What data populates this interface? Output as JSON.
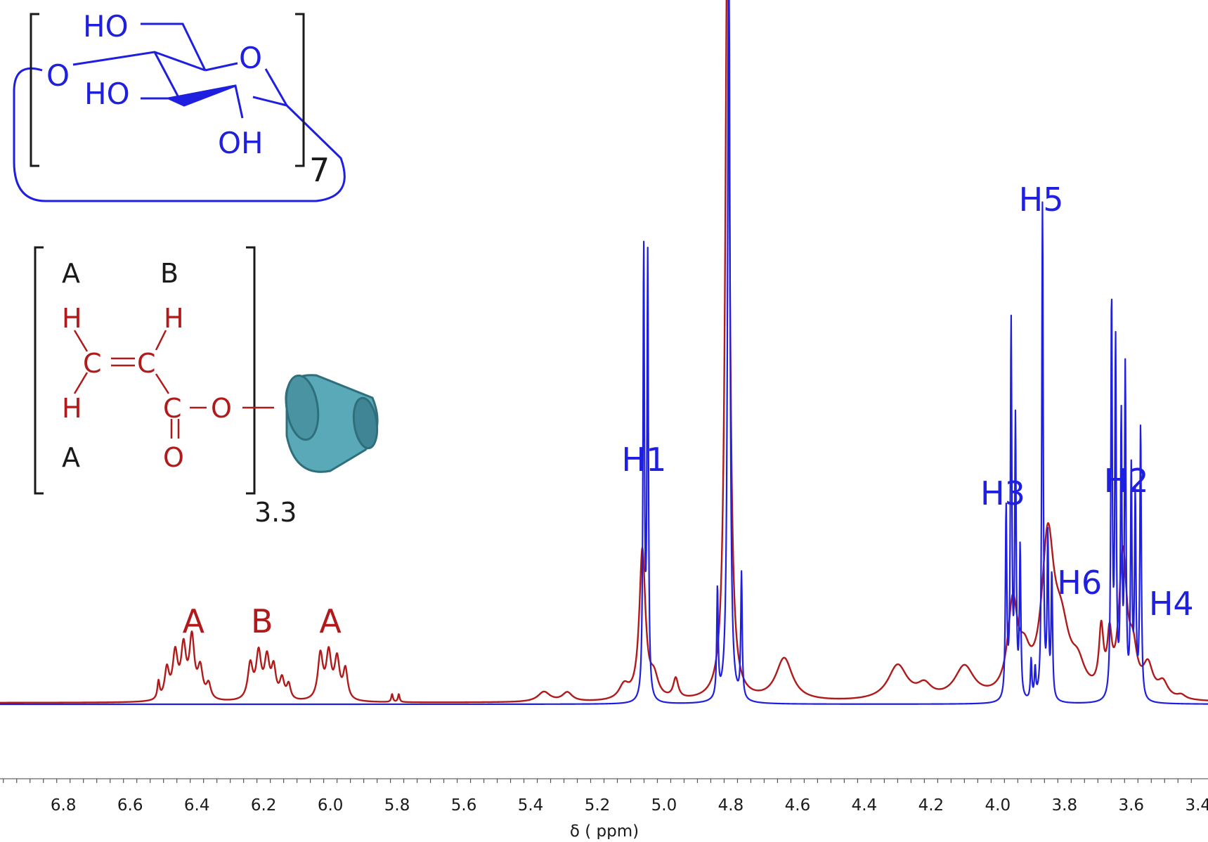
{
  "colors": {
    "blue": "#1f1fe0",
    "red": "#b01a1a",
    "black": "#1a1a1a",
    "cyd": "#5aa9b8"
  },
  "structure": {
    "cyclodextrin": {
      "ho_top": "HO",
      "o_ring": "O",
      "o_left": "O",
      "ho_mid": "HO",
      "oh": "OH",
      "repeat": "7"
    },
    "acrylate": {
      "a_top": "A",
      "b_top": "B",
      "h1": "H",
      "h2": "H",
      "h3": "H",
      "c1": "C",
      "c2": "C",
      "c3": "C",
      "o_ester": "O",
      "o_carbonyl": "O",
      "a_bottom": "A",
      "subscript": "3.3",
      "cd_icon": "cyclodextrin-icon"
    }
  },
  "chart_data": {
    "type": "line",
    "xlabel": "δ ( ppm)",
    "xlim": [
      6.99,
      3.37
    ],
    "ylim": [
      0,
      1
    ],
    "xaxis_reversed": true,
    "ticks": [
      "6.8",
      "6.6",
      "6.4",
      "6.2",
      "6.0",
      "5.8",
      "5.6",
      "5.4",
      "5.2",
      "5.0",
      "4.8",
      "4.6",
      "4.4",
      "4.2",
      "4.0",
      "3.8",
      "3.6",
      "3.4"
    ],
    "tick_values": [
      6.8,
      6.6,
      6.4,
      6.2,
      6.0,
      5.8,
      5.6,
      5.4,
      5.2,
      5.0,
      4.8,
      4.6,
      4.4,
      4.2,
      4.0,
      3.8,
      3.6,
      3.4
    ],
    "grid": false,
    "series": [
      {
        "color": "#b01a1a",
        "peaks": [
          {
            "x": 6.515,
            "h": 0.035,
            "w": 0.004
          },
          {
            "x": 6.49,
            "h": 0.06,
            "w": 0.008
          },
          {
            "x": 6.465,
            "h": 0.09,
            "w": 0.009
          },
          {
            "x": 6.44,
            "h": 0.1,
            "w": 0.009
          },
          {
            "x": 6.415,
            "h": 0.12,
            "w": 0.009
          },
          {
            "x": 6.39,
            "h": 0.06,
            "w": 0.009
          },
          {
            "x": 6.365,
            "h": 0.03,
            "w": 0.008
          },
          {
            "x": 6.24,
            "h": 0.07,
            "w": 0.009
          },
          {
            "x": 6.215,
            "h": 0.09,
            "w": 0.009
          },
          {
            "x": 6.19,
            "h": 0.08,
            "w": 0.009
          },
          {
            "x": 6.17,
            "h": 0.06,
            "w": 0.008
          },
          {
            "x": 6.145,
            "h": 0.04,
            "w": 0.008
          },
          {
            "x": 6.125,
            "h": 0.03,
            "w": 0.007
          },
          {
            "x": 6.03,
            "h": 0.09,
            "w": 0.009
          },
          {
            "x": 6.005,
            "h": 0.09,
            "w": 0.009
          },
          {
            "x": 5.98,
            "h": 0.08,
            "w": 0.009
          },
          {
            "x": 5.955,
            "h": 0.06,
            "w": 0.008
          },
          {
            "x": 5.815,
            "h": 0.016,
            "w": 0.003
          },
          {
            "x": 5.795,
            "h": 0.016,
            "w": 0.003
          },
          {
            "x": 5.36,
            "h": 0.02,
            "w": 0.022
          },
          {
            "x": 5.29,
            "h": 0.018,
            "w": 0.018
          },
          {
            "x": 5.12,
            "h": 0.028,
            "w": 0.018
          },
          {
            "x": 5.065,
            "h": 0.3,
            "w": 0.011
          },
          {
            "x": 5.03,
            "h": 0.04,
            "w": 0.015
          },
          {
            "x": 4.965,
            "h": 0.04,
            "w": 0.009
          },
          {
            "x": 4.81,
            "h": 1.6,
            "w": 0.008
          },
          {
            "x": 4.64,
            "h": 0.085,
            "w": 0.03
          },
          {
            "x": 4.3,
            "h": 0.07,
            "w": 0.035
          },
          {
            "x": 4.22,
            "h": 0.025,
            "w": 0.025
          },
          {
            "x": 4.1,
            "h": 0.065,
            "w": 0.035
          },
          {
            "x": 3.955,
            "h": 0.18,
            "w": 0.018
          },
          {
            "x": 3.92,
            "h": 0.06,
            "w": 0.02
          },
          {
            "x": 3.85,
            "h": 0.3,
            "w": 0.022
          },
          {
            "x": 3.81,
            "h": 0.12,
            "w": 0.03
          },
          {
            "x": 3.76,
            "h": 0.05,
            "w": 0.025
          },
          {
            "x": 3.69,
            "h": 0.12,
            "w": 0.008
          },
          {
            "x": 3.665,
            "h": 0.1,
            "w": 0.008
          },
          {
            "x": 3.625,
            "h": 0.28,
            "w": 0.014
          },
          {
            "x": 3.595,
            "h": 0.08,
            "w": 0.015
          },
          {
            "x": 3.55,
            "h": 0.06,
            "w": 0.018
          },
          {
            "x": 3.505,
            "h": 0.03,
            "w": 0.018
          },
          {
            "x": 3.45,
            "h": 0.008,
            "w": 0.015
          }
        ]
      },
      {
        "color": "#1f1fe0",
        "peaks": [
          {
            "x": 5.061,
            "h": 0.9,
            "w": 0.0025
          },
          {
            "x": 5.049,
            "h": 0.88,
            "w": 0.0025
          },
          {
            "x": 4.84,
            "h": 0.22,
            "w": 0.0025
          },
          {
            "x": 4.806,
            "h": 1.6,
            "w": 0.004
          },
          {
            "x": 4.768,
            "h": 0.25,
            "w": 0.0025
          },
          {
            "x": 3.975,
            "h": 0.38,
            "w": 0.0025
          },
          {
            "x": 3.96,
            "h": 0.75,
            "w": 0.0025
          },
          {
            "x": 3.947,
            "h": 0.55,
            "w": 0.0025
          },
          {
            "x": 3.933,
            "h": 0.3,
            "w": 0.0025
          },
          {
            "x": 3.9,
            "h": 0.08,
            "w": 0.0025
          },
          {
            "x": 3.888,
            "h": 0.06,
            "w": 0.0025
          },
          {
            "x": 3.866,
            "h": 1.0,
            "w": 0.0025
          },
          {
            "x": 3.85,
            "h": 0.32,
            "w": 0.0025
          },
          {
            "x": 3.838,
            "h": 0.25,
            "w": 0.0025
          },
          {
            "x": 3.659,
            "h": 0.8,
            "w": 0.0025
          },
          {
            "x": 3.647,
            "h": 0.7,
            "w": 0.0025
          },
          {
            "x": 3.63,
            "h": 0.55,
            "w": 0.0025
          },
          {
            "x": 3.618,
            "h": 0.65,
            "w": 0.0025
          },
          {
            "x": 3.6,
            "h": 0.45,
            "w": 0.0025
          },
          {
            "x": 3.588,
            "h": 0.4,
            "w": 0.0025
          },
          {
            "x": 3.572,
            "h": 0.55,
            "w": 0.0025
          }
        ]
      }
    ],
    "annotations": [
      {
        "text": "A",
        "x": 6.41,
        "color": "#b01a1a"
      },
      {
        "text": "B",
        "x": 6.205,
        "color": "#b01a1a"
      },
      {
        "text": "A",
        "x": 6.0,
        "color": "#b01a1a"
      },
      {
        "text": "H1",
        "x": 5.06,
        "color": "#1f1fe0"
      },
      {
        "text": "H3",
        "x": 3.985,
        "color": "#1f1fe0"
      },
      {
        "text": "H5",
        "x": 3.87,
        "color": "#1f1fe0"
      },
      {
        "text": "H6",
        "x": 3.755,
        "color": "#1f1fe0"
      },
      {
        "text": "H2",
        "x": 3.615,
        "color": "#1f1fe0"
      },
      {
        "text": "H4",
        "x": 3.48,
        "color": "#1f1fe0"
      }
    ]
  }
}
